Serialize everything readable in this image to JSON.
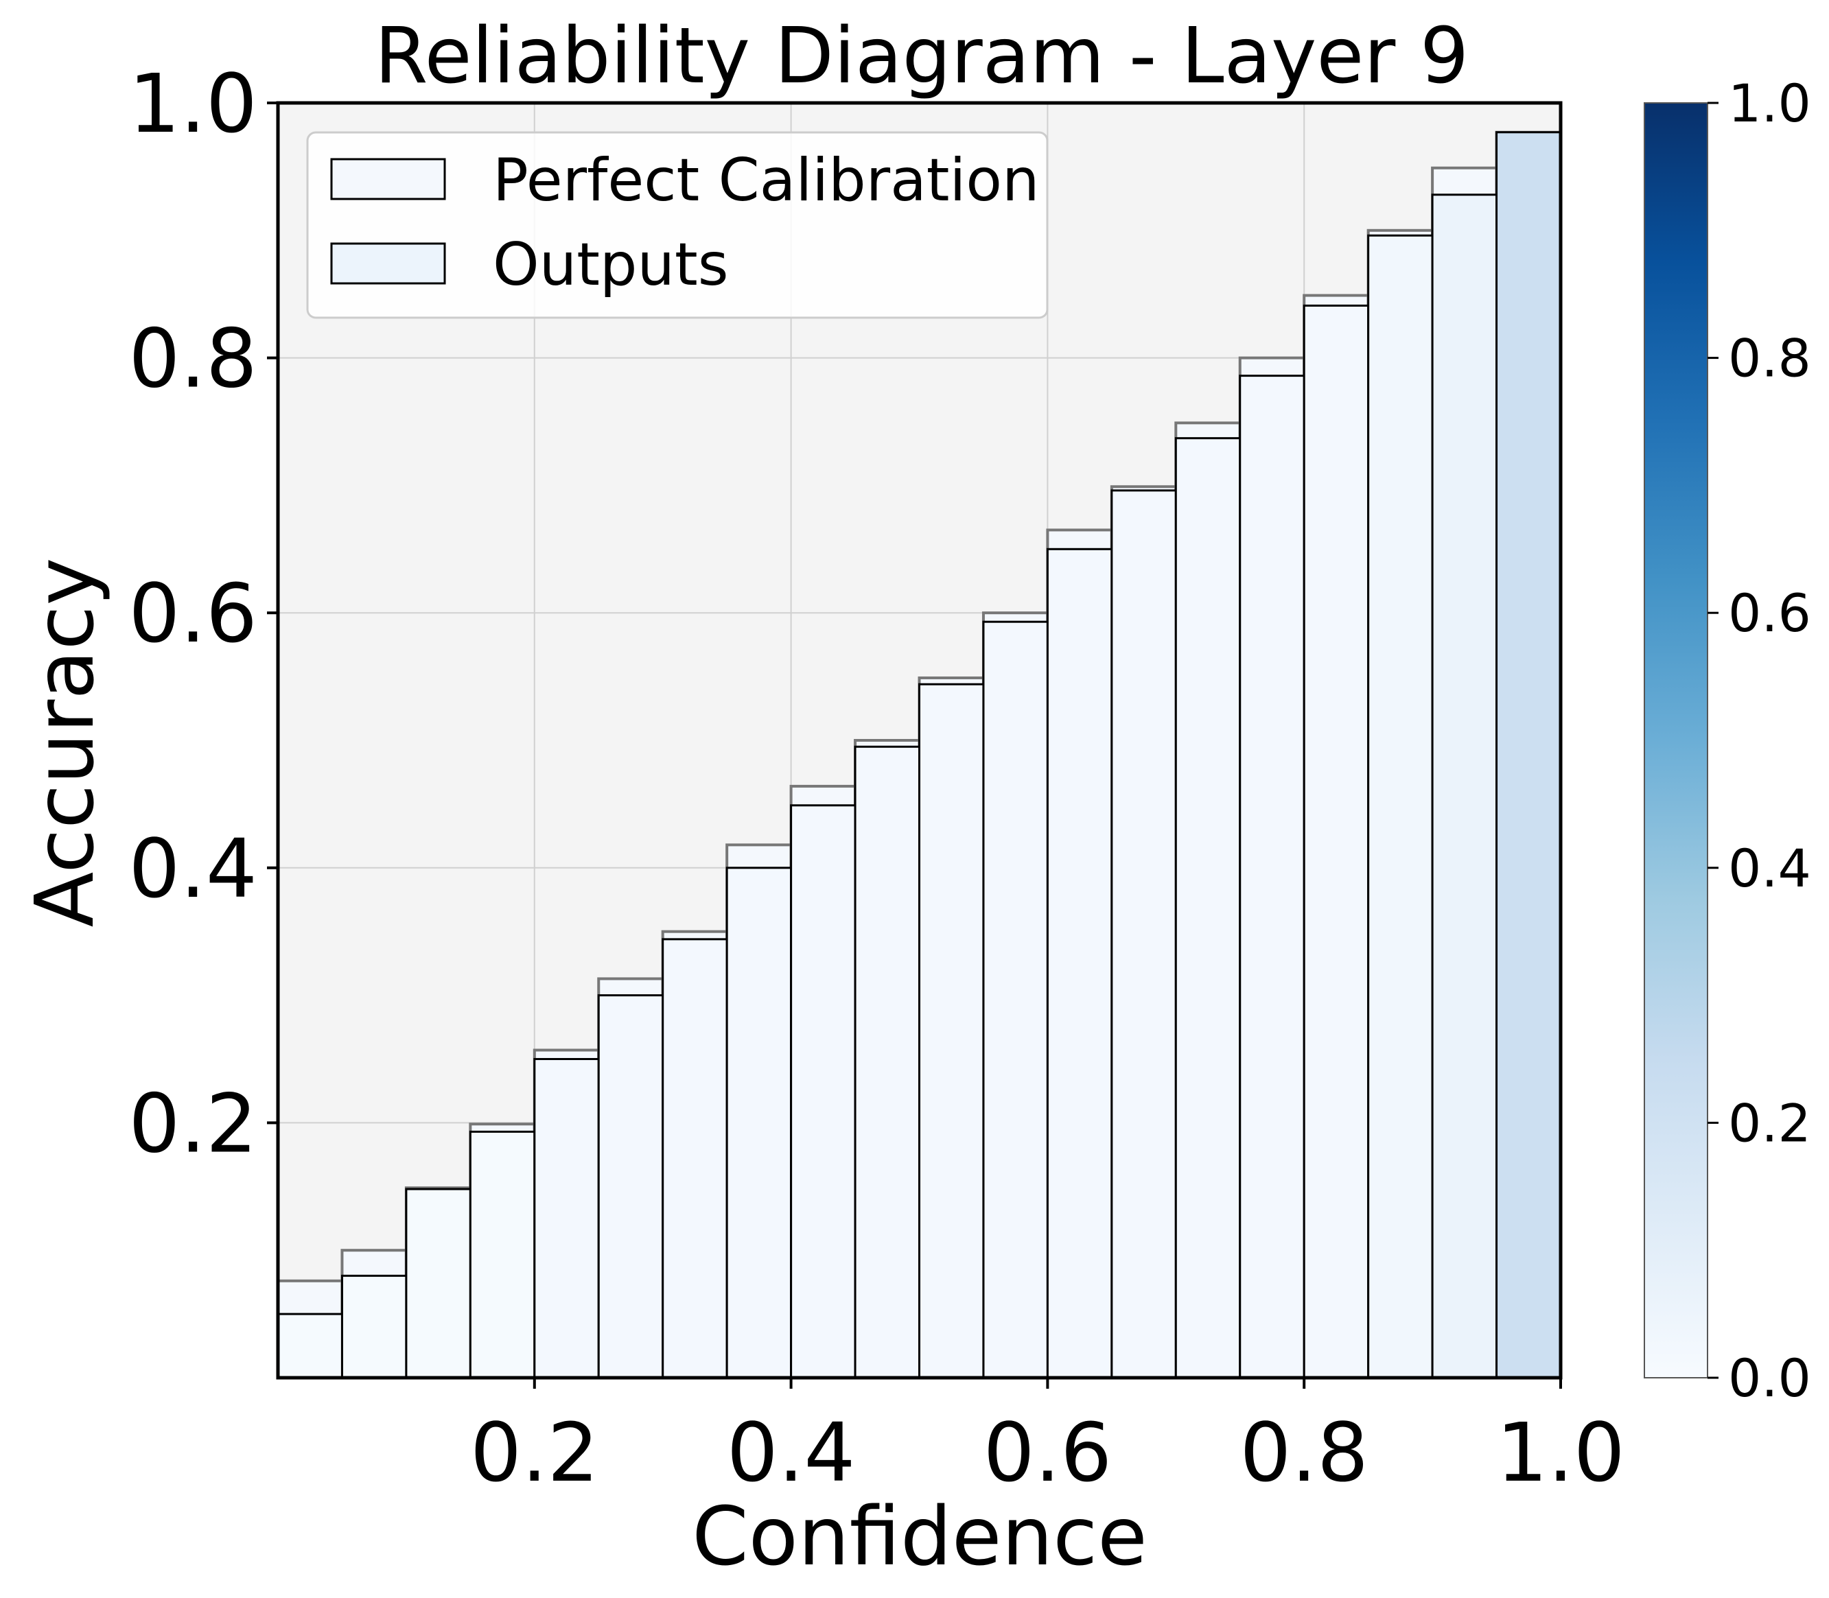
{
  "chart_data": {
    "type": "bar",
    "title": "Reliability Diagram - Layer 9",
    "xlabel": "Confidence",
    "ylabel": "Accuracy",
    "xlim": [
      0,
      1
    ],
    "ylim": [
      0,
      1
    ],
    "grid": true,
    "legend_position": "top-left",
    "x_ticks": [
      "0.2",
      "0.4",
      "0.6",
      "0.8",
      "1.0"
    ],
    "y_ticks": [
      "0.2",
      "0.4",
      "0.6",
      "0.8",
      "1.0"
    ],
    "bin_width": 0.05,
    "bin_lefts": [
      0.0,
      0.05,
      0.1,
      0.15,
      0.2,
      0.25,
      0.3,
      0.35,
      0.4,
      0.45,
      0.5,
      0.55,
      0.6,
      0.65,
      0.7,
      0.75,
      0.8,
      0.85,
      0.9,
      0.95
    ],
    "series": [
      {
        "name": "Perfect Calibration",
        "values": [
          0.076,
          0.1,
          0.149,
          0.199,
          0.257,
          0.313,
          0.35,
          0.418,
          0.464,
          0.5,
          0.549,
          0.6,
          0.665,
          0.699,
          0.749,
          0.8,
          0.849,
          0.9,
          0.949,
          0.977
        ]
      },
      {
        "name": "Outputs",
        "values": [
          0.05,
          0.08,
          0.148,
          0.193,
          0.25,
          0.3,
          0.344,
          0.4,
          0.449,
          0.495,
          0.544,
          0.593,
          0.65,
          0.696,
          0.737,
          0.786,
          0.841,
          0.896,
          0.928,
          0.977
        ],
        "sample_fraction": [
          0.01,
          0.01,
          0.01,
          0.01,
          0.02,
          0.02,
          0.02,
          0.02,
          0.02,
          0.02,
          0.02,
          0.02,
          0.02,
          0.02,
          0.02,
          0.02,
          0.02,
          0.03,
          0.06,
          0.22
        ]
      }
    ],
    "colorbar": {
      "colormap": "Blues",
      "range": [
        0,
        1
      ],
      "ticks": [
        "0.0",
        "0.2",
        "0.4",
        "0.6",
        "0.8",
        "1.0"
      ],
      "colors": [
        "#f7fbff",
        "#deebf7",
        "#c6dbef",
        "#9ecae1",
        "#6baed6",
        "#4292c6",
        "#2171b5",
        "#08519c",
        "#08306b"
      ]
    },
    "colors": {
      "plot_background": "#f4f4f4",
      "grid": "#d0d0d0",
      "perfect_edge": "#777777",
      "output_edge": "#000000"
    }
  }
}
